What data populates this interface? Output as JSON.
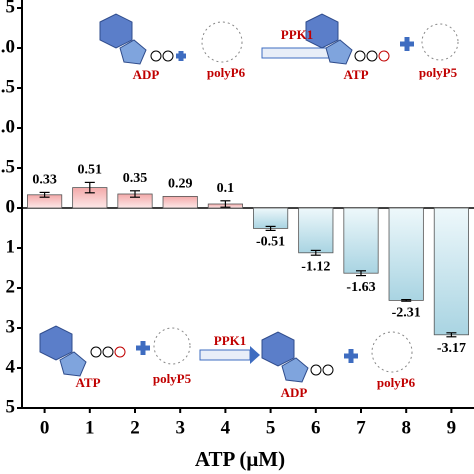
{
  "chart_data": {
    "type": "bar",
    "x_label": "ATP (μM)",
    "categories": [
      "0",
      "1",
      "2",
      "3",
      "4",
      "5",
      "6",
      "7",
      "8",
      "9"
    ],
    "values": [
      0.33,
      0.51,
      0.35,
      0.29,
      0.1,
      -0.51,
      -1.12,
      -1.63,
      -2.31,
      -3.17
    ],
    "errors": [
      0.06,
      0.13,
      0.08,
      0,
      0.08,
      0.05,
      0.06,
      0.06,
      0.02,
      0.05
    ],
    "positive_color": "#f7c3c3",
    "negative_color": "#c4e3ec",
    "ylim": [
      -5,
      5.2
    ],
    "yticks": [
      {
        "value": 5,
        "label": "5"
      },
      {
        "value": 4,
        "label": ".0"
      },
      {
        "value": 3,
        "label": ".5"
      },
      {
        "value": 2,
        "label": ".0"
      },
      {
        "value": 1,
        "label": ".5"
      },
      0,
      {
        "value": -1,
        "label": "1"
      },
      {
        "value": -2,
        "label": "2"
      },
      {
        "value": -3,
        "label": "3"
      },
      {
        "value": -4,
        "label": "4"
      },
      {
        "value": -5,
        "label": "5"
      }
    ],
    "reactions": [
      {
        "substrate": "ADP",
        "donor": "polyP6",
        "enzyme": "PPK1",
        "product": "ATP",
        "byproduct": "polyP5"
      },
      {
        "substrate": "ATP",
        "donor": "polyP5",
        "enzyme": "PPK1",
        "product": "ADP",
        "byproduct": "polyP6"
      }
    ]
  }
}
